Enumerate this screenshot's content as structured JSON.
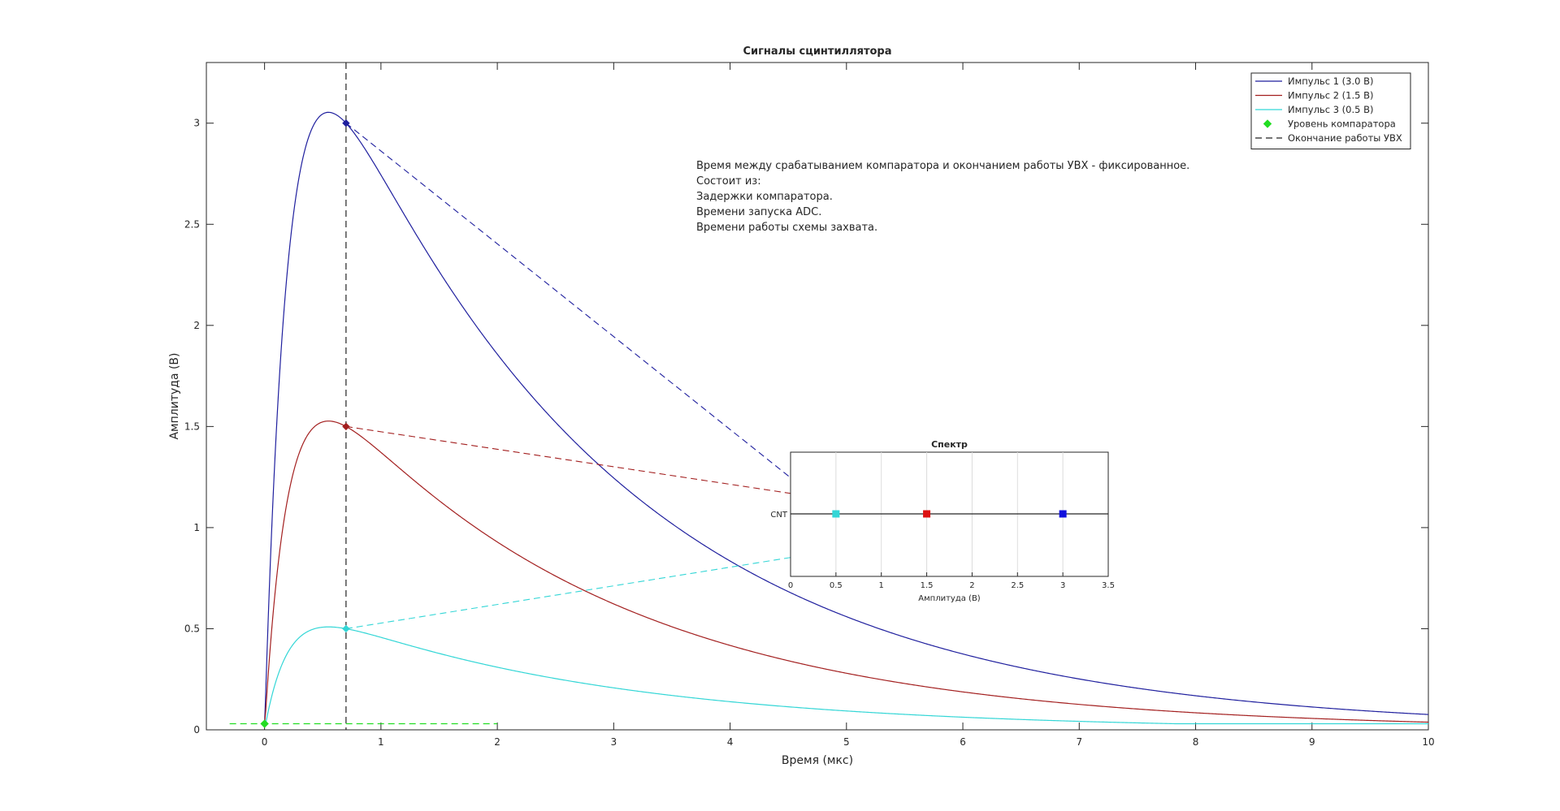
{
  "chart_data": [
    {
      "type": "line",
      "title": "Сигналы сцинтиллятора",
      "xlabel": "Время (мкс)",
      "ylabel": "Амплитуда (В)",
      "xlim": [
        -0.5,
        10
      ],
      "ylim": [
        0,
        3.3
      ],
      "xticks": [
        0,
        1,
        2,
        3,
        4,
        5,
        6,
        7,
        8,
        9,
        10
      ],
      "yticks": [
        0,
        0.5,
        1,
        1.5,
        2,
        2.5,
        3
      ],
      "grid": false,
      "legend_position": "top-right",
      "pulse_model": {
        "rise_time_us": 0.2,
        "decay_time_us": 2.5,
        "peak_time_us": 0.7
      },
      "series": [
        {
          "name": "Импульс 1 (3.0 В)",
          "amplitude": 3.0,
          "color": "#1f1f9e",
          "style": "solid"
        },
        {
          "name": "Импульс 2 (1.5 В)",
          "amplitude": 1.5,
          "color": "#a31f1f",
          "style": "solid"
        },
        {
          "name": "Импульс 3 (0.5 В)",
          "amplitude": 0.5,
          "color": "#33d6d6",
          "style": "solid"
        },
        {
          "name": "Уровень компаратора",
          "color": "#22dd22",
          "style": "dashed",
          "level": 0.03,
          "x_range": [
            -0.3,
            2
          ],
          "marker_x": 0
        },
        {
          "name": "Окончание работы УВХ",
          "color": "#222222",
          "style": "dashed",
          "x": 0.7
        }
      ],
      "annotation_lines": [
        "Время между срабатыванием компаратора и окончанием работы УВХ - фиксированное.",
        "Состоит из:",
        "Задержки компаратора.",
        "Времени запуска ADC.",
        "Времени работы схемы захвата."
      ]
    },
    {
      "type": "scatter",
      "title": "Спектр",
      "xlabel": "Амплитуда (В)",
      "ylabel": "",
      "y_category": "CNT",
      "xlim": [
        0,
        3.5
      ],
      "xticks": [
        0,
        0.5,
        1,
        1.5,
        2,
        2.5,
        3,
        3.5
      ],
      "grid": true,
      "points": [
        {
          "x": 0.5,
          "color": "#33d6d6"
        },
        {
          "x": 1.5,
          "color": "#dd1111"
        },
        {
          "x": 3.0,
          "color": "#1111dd"
        }
      ]
    }
  ]
}
